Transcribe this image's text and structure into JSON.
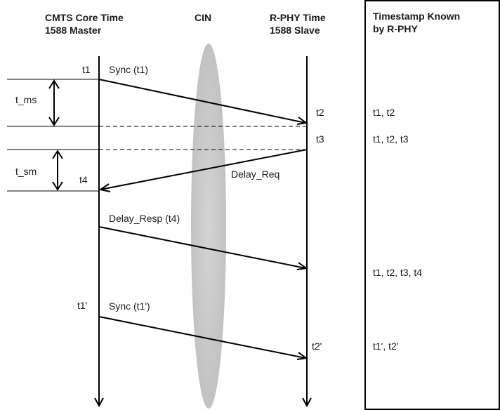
{
  "headers": {
    "master_line1": "CMTS Core Time",
    "master_line2": "1588 Master",
    "cin": "CIN",
    "slave_line1": "R-PHY Time",
    "slave_line2": "1588 Slave",
    "known_line1": "Timestamp Known",
    "known_line2": "by R-PHY"
  },
  "master_labels": {
    "t1": "t1",
    "t4": "t4",
    "t1p": "t1'"
  },
  "slave_labels": {
    "t2": "t2",
    "t3": "t3",
    "t2p": "t2'"
  },
  "messages": {
    "sync": "Sync (t1)",
    "delay_req": "Delay_Req",
    "delay_resp": "Delay_Resp (t4)",
    "sync2": "Sync (t1')"
  },
  "intervals": {
    "t_ms": "t_ms",
    "t_sm": "t_sm"
  },
  "known": {
    "at_t2": "t1, t2",
    "at_t3": "t1, t2, t3",
    "after_resp": "t1, t2, t3, t4",
    "at_t2p": "t1', t2'"
  }
}
